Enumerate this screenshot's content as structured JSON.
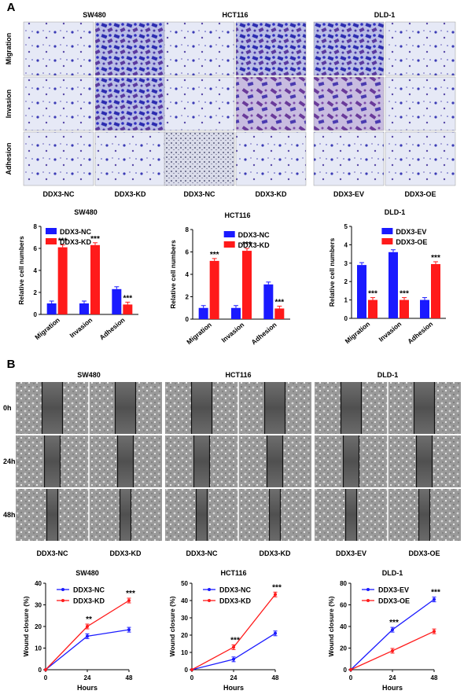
{
  "panel_a": {
    "letter": "A",
    "cell_lines": [
      "SW480",
      "HCT116",
      "DLD-1"
    ],
    "row_labels": [
      "Migration",
      "Invasion",
      "Adhesion"
    ],
    "conditions": [
      [
        "DDX3-NC",
        "DDX3-KD"
      ],
      [
        "DDX3-NC",
        "DDX3-KD"
      ],
      [
        "DDX3-EV",
        "DDX3-OE"
      ]
    ]
  },
  "panel_b": {
    "letter": "B",
    "cell_lines": [
      "SW480",
      "HCT116",
      "DLD-1"
    ],
    "row_labels": [
      "0h",
      "24h",
      "48h"
    ],
    "conditions": [
      [
        "DDX3-NC",
        "DDX3-KD"
      ],
      [
        "DDX3-NC",
        "DDX3-KD"
      ],
      [
        "DDX3-EV",
        "DDX3-OE"
      ]
    ]
  },
  "colors": {
    "blue": "#1a1aff",
    "red": "#ff1a1a",
    "stain_dark": "#3a3ab8",
    "stain_purple": "#7a4aa8",
    "stain_bg": "#d8dcf0",
    "wound_bg": "#8a8a8a"
  },
  "chart_data": [
    {
      "type": "bar",
      "title": "SW480",
      "categories": [
        "Migration",
        "Invasion",
        "Adhesion"
      ],
      "ylabel": "Relative cell numbers",
      "ylim": [
        0,
        8
      ],
      "yticks": [
        0,
        2,
        4,
        6,
        8
      ],
      "legend_position": "top-left",
      "series": [
        {
          "name": "DDX3-NC",
          "color": "#1a1aff",
          "values": [
            1.0,
            1.0,
            2.3
          ]
        },
        {
          "name": "DDX3-KD",
          "color": "#ff1a1a",
          "values": [
            6.1,
            6.3,
            0.9
          ]
        }
      ],
      "significance": [
        "***",
        "***",
        "***"
      ]
    },
    {
      "type": "bar",
      "title": "HCT116",
      "categories": [
        "Migration",
        "Invasion",
        "Adhesion"
      ],
      "ylabel": "Relative cell numbers",
      "ylim": [
        0,
        8
      ],
      "yticks": [
        0,
        2,
        4,
        6,
        8
      ],
      "legend_position": "top-right",
      "series": [
        {
          "name": "DDX3-NC",
          "color": "#1a1aff",
          "values": [
            1.0,
            1.0,
            3.1
          ]
        },
        {
          "name": "DDX3-KD",
          "color": "#ff1a1a",
          "values": [
            5.2,
            6.1,
            0.95
          ]
        }
      ],
      "significance": [
        "***",
        "***",
        "***"
      ]
    },
    {
      "type": "bar",
      "title": "DLD-1",
      "categories": [
        "Migration",
        "Invasion",
        "Adhesion"
      ],
      "ylabel": "Relative cell numbers",
      "ylim": [
        0,
        5
      ],
      "yticks": [
        0,
        1,
        2,
        3,
        4,
        5
      ],
      "legend_position": "top-right",
      "series": [
        {
          "name": "DDX3-EV",
          "color": "#1a1aff",
          "values": [
            2.9,
            3.6,
            1.0
          ]
        },
        {
          "name": "DDX3-OE",
          "color": "#ff1a1a",
          "values": [
            1.0,
            1.0,
            2.95
          ]
        }
      ],
      "significance": [
        "***",
        "***",
        "***"
      ]
    },
    {
      "type": "line",
      "title": "SW480",
      "x": [
        0,
        24,
        48
      ],
      "xlabel": "Hours",
      "ylabel": "Wound closure (%)",
      "ylim": [
        0,
        40
      ],
      "yticks": [
        0,
        10,
        20,
        30,
        40
      ],
      "xticks": [
        0,
        24,
        48
      ],
      "legend_position": "top-left",
      "series": [
        {
          "name": "DDX3-NC",
          "color": "#1a1aff",
          "values": [
            0,
            15.5,
            18.5
          ]
        },
        {
          "name": "DDX3-KD",
          "color": "#ff1a1a",
          "values": [
            0,
            20,
            32
          ]
        }
      ],
      "significance": [
        "",
        "**",
        "***"
      ]
    },
    {
      "type": "line",
      "title": "HCT116",
      "x": [
        0,
        24,
        48
      ],
      "xlabel": "Hours",
      "ylabel": "Wound closure (%)",
      "ylim": [
        0,
        50
      ],
      "yticks": [
        0,
        10,
        20,
        30,
        40,
        50
      ],
      "xticks": [
        0,
        24,
        48
      ],
      "legend_position": "top-left",
      "series": [
        {
          "name": "DDX3-NC",
          "color": "#1a1aff",
          "values": [
            0,
            6,
            21
          ]
        },
        {
          "name": "DDX3-KD",
          "color": "#ff1a1a",
          "values": [
            0,
            13,
            43.5
          ]
        }
      ],
      "significance": [
        "",
        "***",
        "***"
      ]
    },
    {
      "type": "line",
      "title": "DLD-1",
      "x": [
        0,
        24,
        48
      ],
      "xlabel": "Hours",
      "ylabel": "Wound closure (%)",
      "ylim": [
        0,
        80
      ],
      "yticks": [
        0,
        20,
        40,
        60,
        80
      ],
      "xticks": [
        0,
        24,
        48
      ],
      "legend_position": "top-left",
      "series": [
        {
          "name": "DDX3-EV",
          "color": "#1a1aff",
          "values": [
            0,
            37,
            65
          ]
        },
        {
          "name": "DDX3-OE",
          "color": "#ff1a1a",
          "values": [
            0,
            17.5,
            35.5
          ]
        }
      ],
      "significance": [
        "",
        "***",
        "***"
      ]
    }
  ]
}
